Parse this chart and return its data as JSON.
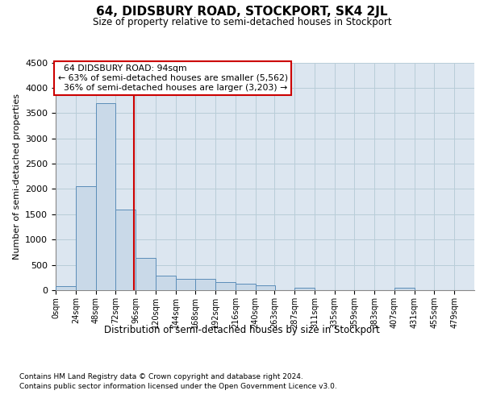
{
  "title": "64, DIDSBURY ROAD, STOCKPORT, SK4 2JL",
  "subtitle": "Size of property relative to semi-detached houses in Stockport",
  "xlabel": "Distribution of semi-detached houses by size in Stockport",
  "ylabel": "Number of semi-detached properties",
  "property_size": 94,
  "property_label": "64 DIDSBURY ROAD: 94sqm",
  "pct_smaller": 63,
  "pct_larger": 36,
  "n_smaller": 5562,
  "n_larger": 3203,
  "bin_width": 24,
  "bin_starts": [
    0,
    24,
    48,
    72,
    96,
    120,
    144,
    168,
    192,
    216,
    240,
    263,
    287,
    311,
    335,
    359,
    383,
    407,
    431,
    455,
    479
  ],
  "bar_heights": [
    80,
    2060,
    3700,
    1600,
    640,
    290,
    220,
    220,
    155,
    130,
    100,
    0,
    50,
    0,
    0,
    0,
    0,
    50,
    0,
    0,
    0
  ],
  "bar_color": "#c9d9e8",
  "bar_edge_color": "#5b8db8",
  "red_line_color": "#cc0000",
  "grid_color": "#b8cdd8",
  "background_color": "#dce6f0",
  "ylim": [
    0,
    4500
  ],
  "yticks": [
    0,
    500,
    1000,
    1500,
    2000,
    2500,
    3000,
    3500,
    4000,
    4500
  ],
  "footnote1": "Contains HM Land Registry data © Crown copyright and database right 2024.",
  "footnote2": "Contains public sector information licensed under the Open Government Licence v3.0.",
  "tick_labels": [
    "0sqm",
    "24sqm",
    "48sqm",
    "72sqm",
    "96sqm",
    "120sqm",
    "144sqm",
    "168sqm",
    "192sqm",
    "216sqm",
    "240sqm",
    "263sqm",
    "287sqm",
    "311sqm",
    "335sqm",
    "359sqm",
    "383sqm",
    "407sqm",
    "431sqm",
    "455sqm",
    "479sqm"
  ]
}
